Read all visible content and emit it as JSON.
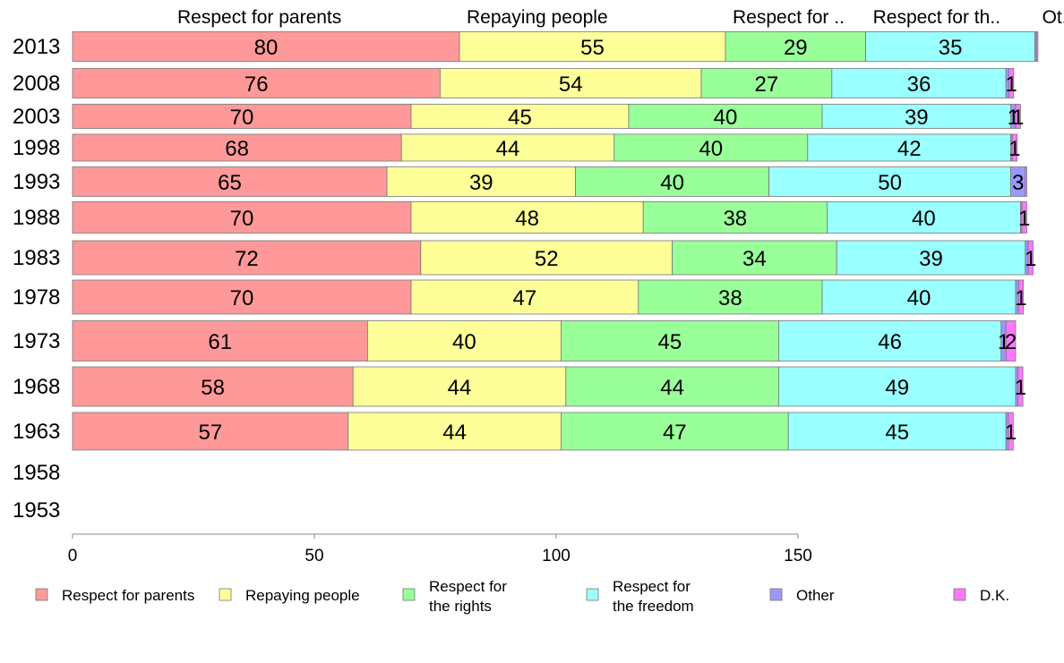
{
  "chart_data": {
    "type": "bar",
    "orientation": "horizontal",
    "stacked": true,
    "categories": [
      "2013",
      "2008",
      "2003",
      "1998",
      "1993",
      "1988",
      "1983",
      "1978",
      "1973",
      "1968",
      "1963",
      "1958",
      "1953"
    ],
    "series": [
      {
        "name": "Respect for parents",
        "header": "Respect for parents",
        "color": "#ff9999",
        "values": [
          80,
          76,
          70,
          68,
          65,
          70,
          72,
          70,
          61,
          58,
          57,
          null,
          null
        ]
      },
      {
        "name": "Repaying people",
        "header": "Repaying people",
        "color": "#ffff99",
        "values": [
          55,
          54,
          45,
          44,
          39,
          48,
          52,
          47,
          40,
          44,
          44,
          null,
          null
        ]
      },
      {
        "name": "Respect for the rights",
        "header": "Respect for ..",
        "color": "#99ff99",
        "values": [
          29,
          27,
          40,
          40,
          40,
          38,
          34,
          38,
          45,
          44,
          47,
          null,
          null
        ]
      },
      {
        "name": "Respect for the freedom",
        "header": "Respect for th..",
        "color": "#99ffff",
        "values": [
          35,
          36,
          39,
          42,
          50,
          40,
          39,
          40,
          46,
          49,
          45,
          null,
          null
        ]
      },
      {
        "name": "Other",
        "header": "Ot..",
        "color": "#9999ff",
        "values": [
          0.3,
          0.6,
          1,
          0.3,
          3,
          0.3,
          0.6,
          0.6,
          1,
          0.5,
          0.5,
          null,
          null
        ]
      },
      {
        "name": "D.K.",
        "header": "",
        "color": "#ff77ff",
        "values": [
          0.3,
          1,
          1,
          1,
          0.3,
          1,
          1,
          1,
          2,
          1,
          1,
          null,
          null
        ]
      }
    ],
    "data_labels": [
      [
        "80",
        "55",
        "29",
        "35",
        "",
        ""
      ],
      [
        "76",
        "54",
        "27",
        "36",
        "",
        "1"
      ],
      [
        "70",
        "45",
        "40",
        "39",
        "1",
        "1"
      ],
      [
        "68",
        "44",
        "40",
        "42",
        "",
        "1"
      ],
      [
        "65",
        "39",
        "40",
        "50",
        "3",
        ""
      ],
      [
        "70",
        "48",
        "38",
        "40",
        "",
        "1"
      ],
      [
        "72",
        "52",
        "34",
        "39",
        "",
        "1"
      ],
      [
        "70",
        "47",
        "38",
        "40",
        "",
        "1"
      ],
      [
        "61",
        "40",
        "45",
        "46",
        "1",
        "2"
      ],
      [
        "58",
        "44",
        "44",
        "49",
        "",
        "1"
      ],
      [
        "57",
        "44",
        "47",
        "45",
        "",
        "1"
      ],
      [
        "",
        "",
        "",
        "",
        "",
        ""
      ],
      [
        "",
        "",
        "",
        "",
        "",
        ""
      ]
    ],
    "xlim": [
      0,
      200
    ],
    "xticks": [
      0,
      50,
      100,
      150
    ],
    "legend": {
      "position": "bottom",
      "entries": [
        {
          "lines": [
            "Respect for parents"
          ]
        },
        {
          "lines": [
            "Repaying people"
          ]
        },
        {
          "lines": [
            "Respect for",
            "the rights"
          ]
        },
        {
          "lines": [
            "Respect for",
            "the freedom"
          ]
        },
        {
          "lines": [
            "Other"
          ]
        },
        {
          "lines": [
            "D.K."
          ]
        }
      ]
    }
  }
}
